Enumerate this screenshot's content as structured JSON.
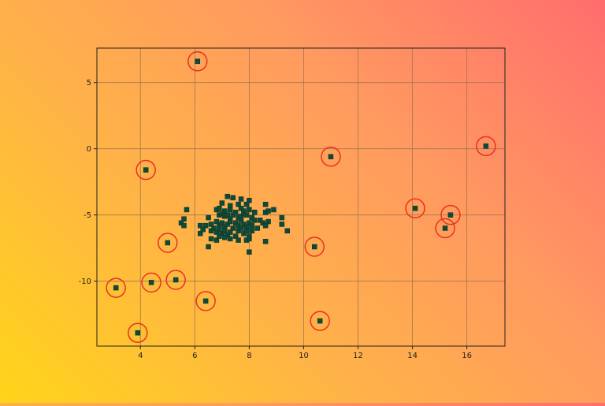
{
  "chart_data": {
    "type": "scatter",
    "title": "",
    "xlabel": "",
    "ylabel": "",
    "xlim": [
      2.4,
      17.4
    ],
    "ylim": [
      -14.9,
      7.6
    ],
    "xticks": [
      4,
      6,
      8,
      10,
      12,
      14,
      16
    ],
    "yticks": [
      -10,
      -5,
      0,
      5
    ],
    "grid": true,
    "colors": {
      "marker": "#0d4a3a",
      "outlier_ring": "#e8321e",
      "grid": "#a07850",
      "axis": "#222222"
    },
    "series": [
      {
        "role": "cluster",
        "points": [
          [
            7.2,
            -3.6
          ],
          [
            7.4,
            -3.7
          ],
          [
            7.7,
            -3.8
          ],
          [
            8.0,
            -3.9
          ],
          [
            7.0,
            -4.1
          ],
          [
            7.3,
            -4.3
          ],
          [
            7.6,
            -4.2
          ],
          [
            7.9,
            -4.2
          ],
          [
            8.6,
            -4.2
          ],
          [
            5.7,
            -4.6
          ],
          [
            6.8,
            -4.6
          ],
          [
            6.9,
            -4.5
          ],
          [
            7.1,
            -4.7
          ],
          [
            7.3,
            -4.6
          ],
          [
            7.5,
            -4.8
          ],
          [
            7.7,
            -4.5
          ],
          [
            7.8,
            -4.7
          ],
          [
            8.0,
            -4.6
          ],
          [
            8.2,
            -4.8
          ],
          [
            8.6,
            -4.8
          ],
          [
            8.7,
            -4.7
          ],
          [
            8.9,
            -4.6
          ],
          [
            6.5,
            -5.2
          ],
          [
            6.9,
            -5.0
          ],
          [
            7.0,
            -4.9
          ],
          [
            7.1,
            -5.1
          ],
          [
            7.2,
            -5.0
          ],
          [
            7.3,
            -5.3
          ],
          [
            7.4,
            -5.0
          ],
          [
            7.6,
            -5.2
          ],
          [
            7.7,
            -5.1
          ],
          [
            7.8,
            -4.9
          ],
          [
            7.9,
            -5.0
          ],
          [
            8.1,
            -5.2
          ],
          [
            8.2,
            -5.4
          ],
          [
            8.4,
            -5.4
          ],
          [
            8.5,
            -5.6
          ],
          [
            8.7,
            -5.5
          ],
          [
            9.2,
            -5.2
          ],
          [
            5.6,
            -5.3
          ],
          [
            5.5,
            -5.6
          ],
          [
            5.6,
            -5.8
          ],
          [
            6.2,
            -5.8
          ],
          [
            6.4,
            -5.8
          ],
          [
            6.6,
            -5.7
          ],
          [
            6.8,
            -5.5
          ],
          [
            6.9,
            -5.8
          ],
          [
            7.0,
            -5.6
          ],
          [
            7.1,
            -5.9
          ],
          [
            7.2,
            -5.7
          ],
          [
            7.3,
            -5.5
          ],
          [
            7.5,
            -5.6
          ],
          [
            7.6,
            -5.8
          ],
          [
            7.7,
            -5.4
          ],
          [
            7.8,
            -5.7
          ],
          [
            7.9,
            -5.9
          ],
          [
            8.0,
            -5.6
          ],
          [
            8.1,
            -5.8
          ],
          [
            8.3,
            -6.0
          ],
          [
            8.6,
            -5.8
          ],
          [
            9.2,
            -5.7
          ],
          [
            6.2,
            -6.4
          ],
          [
            6.3,
            -6.1
          ],
          [
            6.6,
            -6.2
          ],
          [
            6.7,
            -6.0
          ],
          [
            6.8,
            -6.3
          ],
          [
            6.9,
            -6.1
          ],
          [
            7.0,
            -6.4
          ],
          [
            7.1,
            -6.2
          ],
          [
            7.2,
            -6.5
          ],
          [
            7.3,
            -6.3
          ],
          [
            7.4,
            -6.0
          ],
          [
            7.5,
            -6.6
          ],
          [
            7.6,
            -6.2
          ],
          [
            7.7,
            -6.0
          ],
          [
            7.8,
            -6.4
          ],
          [
            7.9,
            -6.2
          ],
          [
            8.0,
            -6.6
          ],
          [
            8.1,
            -6.2
          ],
          [
            9.4,
            -6.2
          ],
          [
            6.6,
            -6.8
          ],
          [
            6.8,
            -6.9
          ],
          [
            6.9,
            -6.6
          ],
          [
            7.1,
            -6.7
          ],
          [
            7.3,
            -6.8
          ],
          [
            7.6,
            -6.9
          ],
          [
            7.9,
            -6.9
          ],
          [
            8.0,
            -6.8
          ],
          [
            8.6,
            -7.0
          ],
          [
            6.5,
            -7.4
          ],
          [
            8.0,
            -7.8
          ]
        ]
      },
      {
        "role": "outlier",
        "points": [
          [
            6.1,
            6.6
          ],
          [
            4.2,
            -1.6
          ],
          [
            11.0,
            -0.6
          ],
          [
            16.7,
            0.2
          ],
          [
            14.1,
            -4.5
          ],
          [
            15.4,
            -5.0
          ],
          [
            15.2,
            -6.0
          ],
          [
            5.0,
            -7.1
          ],
          [
            10.4,
            -7.4
          ],
          [
            3.1,
            -10.5
          ],
          [
            4.4,
            -10.1
          ],
          [
            5.3,
            -9.9
          ],
          [
            6.4,
            -11.5
          ],
          [
            10.6,
            -13.0
          ],
          [
            3.9,
            -13.9
          ]
        ]
      }
    ]
  }
}
